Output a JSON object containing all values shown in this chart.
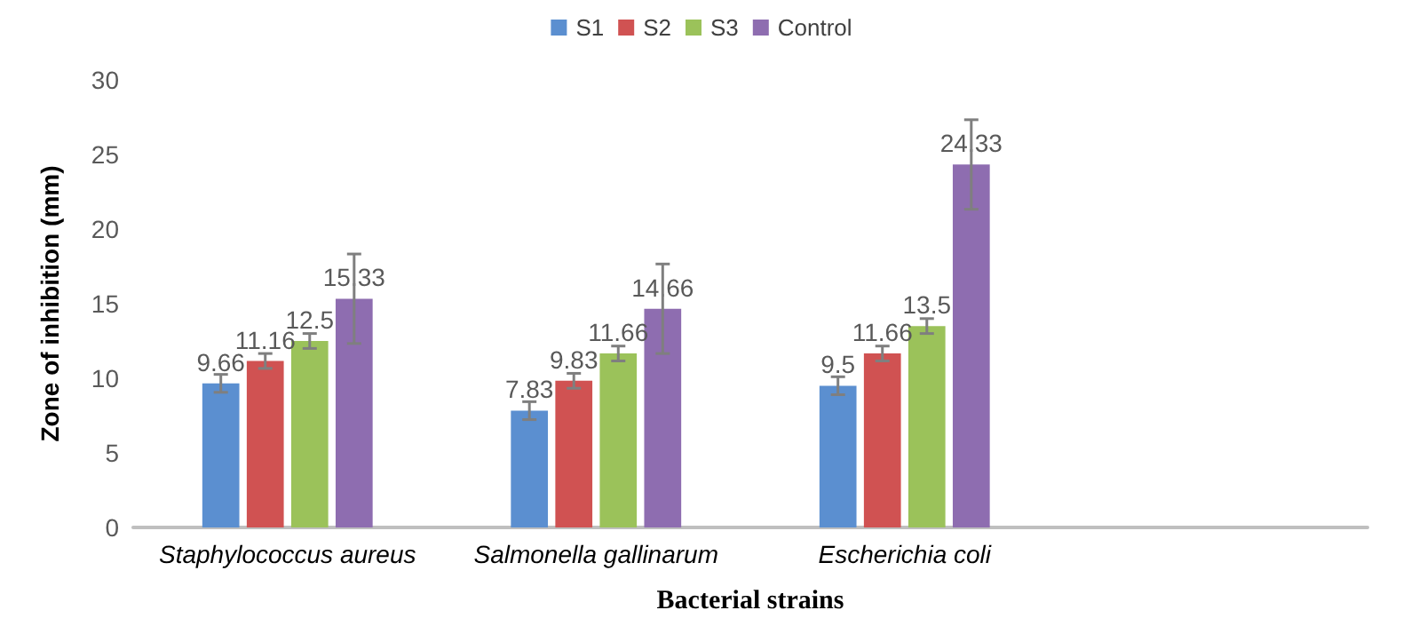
{
  "chart_data": {
    "type": "bar",
    "xlabel": "Bacterial strains",
    "ylabel": "Zone of inhibition (mm)",
    "categories": [
      "Staphylococcus aureus",
      "Salmonella gallinarum",
      "Escherichia coli",
      null
    ],
    "series": [
      {
        "name": "S1",
        "color": "#5b8fd0",
        "values": [
          9.66,
          7.83,
          9.5,
          null
        ],
        "errors": [
          0.6,
          0.6,
          0.6,
          null
        ]
      },
      {
        "name": "S2",
        "color": "#d05252",
        "values": [
          11.16,
          9.83,
          11.66,
          null
        ],
        "errors": [
          0.5,
          0.5,
          0.5,
          null
        ]
      },
      {
        "name": "S3",
        "color": "#9bc25a",
        "values": [
          12.5,
          11.66,
          13.5,
          null
        ],
        "errors": [
          0.5,
          0.5,
          0.5,
          null
        ]
      },
      {
        "name": "Control",
        "color": "#8e6db0",
        "values": [
          15.33,
          14.66,
          24.33,
          null
        ],
        "errors": [
          3,
          3,
          3,
          null
        ]
      }
    ],
    "ylim": [
      0,
      30
    ],
    "yticks": [
      0,
      5,
      10,
      15,
      20,
      25,
      30
    ],
    "grid": false,
    "legend": "top",
    "data_labels": true
  }
}
